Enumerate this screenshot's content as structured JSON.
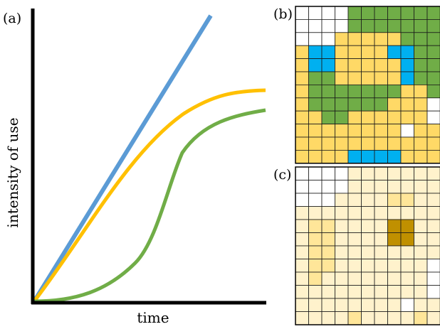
{
  "panels": {
    "a": {
      "label": "(a)",
      "xlabel": "time",
      "ylabel": "intensity of use",
      "curves": [
        {
          "id": "linear",
          "color": "#5b9bd5",
          "shape": "straight line"
        },
        {
          "id": "saturating",
          "color": "#ffc000",
          "shape": "concave saturating"
        },
        {
          "id": "sigmoid",
          "color": "#70ad47",
          "shape": "sigmoid"
        }
      ]
    },
    "b": {
      "label": "(b)",
      "palette": {
        "W": "#ffffff",
        "Y": "#ffd966",
        "G": "#70ad47",
        "B": "#00b0f0"
      },
      "grid": [
        "WWWWGGGGGGG",
        "WWWWGGGGGGG",
        "WWWYYYYYGGG",
        "YBBYYYYBBGG",
        "YBBYYYYYBGG",
        "YGGYYYYYBGG",
        "YGGGGGGGYYG",
        "YGGGGGGYYYW",
        "YYGGYYYYYYW",
        "YYYYYYYYWYY",
        "YYYYYYYYYYY",
        "YYYYBBBBYYY"
      ]
    },
    "c": {
      "label": "(c)",
      "palette": {
        "W": "#ffffff",
        "L": "#fff2cc",
        "M": "#ffe699",
        "D": "#c09000"
      },
      "grid": [
        "WWWWLLLLLLL",
        "WWWWLLLLLLL",
        "WWWLLLLMMLL",
        "LLLLLLLLLLL",
        "LMMLLLLDDLL",
        "LMMLLLLDDLL",
        "LMMLLLLLLLL",
        "LMMLLLLLLLW",
        "LMLLLLLLLLW",
        "LLLLLLLLLLW",
        "LLLLLLLLWLL",
        "LLLLMLLLLML"
      ]
    }
  }
}
